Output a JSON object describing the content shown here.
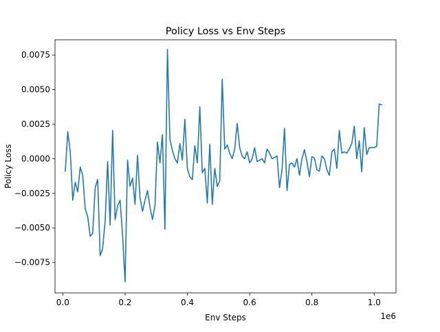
{
  "chart_data": {
    "type": "line",
    "title": "Policy Loss vs Env Steps",
    "xlabel": "Env Steps",
    "ylabel": "Policy Loss",
    "x_offset_text": "1e6",
    "xlim": [
      -25000,
      1070000
    ],
    "ylim": [
      -0.0097,
      0.0086
    ],
    "xticks": [
      0,
      200000,
      400000,
      600000,
      800000,
      1000000
    ],
    "xtick_labels": [
      "0.0",
      "0.2",
      "0.4",
      "0.6",
      "0.8",
      "1.0"
    ],
    "yticks": [
      -0.0075,
      -0.005,
      -0.0025,
      0.0,
      0.0025,
      0.005,
      0.0075
    ],
    "ytick_labels": [
      "−0.0075",
      "−0.0050",
      "−0.0025",
      "0.0000",
      "0.0025",
      "0.0050",
      "0.0075"
    ],
    "grid": false,
    "line_color": "#1f77b4",
    "series": [
      {
        "x": [
          8000,
          16000,
          24000,
          32000,
          40000,
          48000,
          56000,
          64000,
          72000,
          80000,
          88000,
          96000,
          104000,
          112000,
          120000,
          128000,
          136000,
          144000,
          152000,
          160000,
          168000,
          176000,
          184000,
          192000,
          200000,
          208000,
          216000,
          224000,
          232000,
          240000,
          248000,
          256000,
          264000,
          272000,
          280000,
          288000,
          296000,
          304000,
          312000,
          320000,
          328000,
          336000,
          344000,
          352000,
          360000,
          368000,
          376000,
          384000,
          392000,
          400000,
          408000,
          416000,
          424000,
          432000,
          440000,
          448000,
          456000,
          464000,
          472000,
          480000,
          488000,
          496000,
          504000,
          512000,
          520000,
          528000,
          536000,
          544000,
          552000,
          560000,
          568000,
          576000,
          584000,
          592000,
          600000,
          608000,
          616000,
          624000,
          632000,
          640000,
          648000,
          656000,
          664000,
          672000,
          680000,
          688000,
          696000,
          704000,
          712000,
          720000,
          728000,
          736000,
          744000,
          752000,
          760000,
          768000,
          776000,
          784000,
          792000,
          800000,
          808000,
          816000,
          824000,
          832000,
          840000,
          848000,
          856000,
          864000,
          872000,
          880000,
          888000,
          896000,
          904000,
          912000,
          920000,
          928000,
          936000,
          944000,
          952000,
          960000,
          968000,
          976000,
          984000,
          992000,
          1000000,
          1008000,
          1016000,
          1024000
        ],
        "values": [
          -0.0009,
          0.00195,
          0.0005,
          -0.003,
          -0.0017,
          -0.0024,
          -0.0006,
          -0.0012,
          -0.0036,
          -0.0042,
          -0.0056,
          -0.0054,
          -0.0021,
          -0.0015,
          -0.007,
          -0.0065,
          -0.0045,
          -0.0002,
          -0.0048,
          0.00205,
          -0.0044,
          -0.0034,
          -0.003,
          -0.0055,
          -0.0089,
          -0.0001,
          -0.002,
          -0.0014,
          -0.0033,
          0.00025,
          -0.0028,
          -0.0038,
          -0.003,
          -0.0023,
          -0.0035,
          -0.0044,
          -0.0034,
          0.0012,
          -0.0003,
          0.00175,
          -0.0051,
          0.0079,
          0.0014,
          0.0006,
          0.0,
          -0.0003,
          0.0011,
          -0.0001,
          0.00285,
          -0.0007,
          -0.0013,
          -0.0015,
          0.00095,
          -0.0003,
          0.00375,
          -0.001,
          -0.0007,
          -0.0032,
          0.00105,
          -0.0033,
          -0.0007,
          -0.002,
          -0.0016,
          0.00575,
          0.0007,
          0.001,
          0.0004,
          0.0,
          0.0007,
          0.00255,
          0.0008,
          0.0002,
          0.0,
          0.0005,
          -0.0003,
          0.0,
          0.0008,
          -0.0002,
          -0.0001,
          0.0,
          -0.0003,
          0.0007,
          0.0004,
          0.0,
          0.0001,
          0.0002,
          -0.0021,
          -0.0008,
          0.0022,
          -0.0023,
          -0.0004,
          -0.0003,
          -0.0006,
          0.0,
          -0.0012,
          0.0,
          0.00065,
          -0.0002,
          -0.0013,
          0.00015,
          5e-05,
          -0.0008,
          -0.0009,
          0.0002,
          0.0,
          -0.0008,
          -0.0012,
          0.0005,
          0.0007,
          -0.0007,
          0.00205,
          0.0004,
          0.0005,
          0.0004,
          0.0007,
          0.0011,
          0.00235,
          0.0,
          0.0013,
          -0.00095,
          0.00225,
          0.0003,
          0.0008,
          0.0008,
          0.0008,
          0.0009,
          0.00395,
          0.0039
        ]
      }
    ]
  }
}
